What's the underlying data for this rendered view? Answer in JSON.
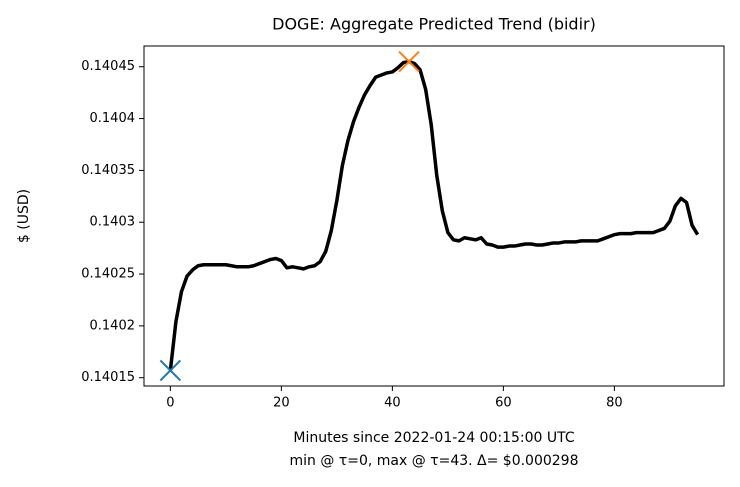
{
  "chart_data": {
    "type": "line",
    "title": "DOGE: Aggregate Predicted Trend (bidir)",
    "xlabel": "Minutes since 2022-01-24 00:15:00 UTC",
    "xlabel2": "min @ τ=0, max @ τ=43. Δ= $0.000298",
    "ylabel": "$ (USD)",
    "x": [
      0,
      1,
      2,
      3,
      4,
      5,
      6,
      7,
      8,
      9,
      10,
      11,
      12,
      13,
      14,
      15,
      16,
      17,
      18,
      19,
      20,
      21,
      22,
      23,
      24,
      25,
      26,
      27,
      28,
      29,
      30,
      31,
      32,
      33,
      34,
      35,
      36,
      37,
      38,
      39,
      40,
      41,
      42,
      43,
      44,
      45,
      46,
      47,
      48,
      49,
      50,
      51,
      52,
      53,
      54,
      55,
      56,
      57,
      58,
      59,
      60,
      61,
      62,
      63,
      64,
      65,
      66,
      67,
      68,
      69,
      70,
      71,
      72,
      73,
      74,
      75,
      76,
      77,
      78,
      79,
      80,
      81,
      82,
      83,
      84,
      85,
      86,
      87,
      88,
      89,
      90,
      91,
      92,
      93,
      94,
      95
    ],
    "series": [
      {
        "name": "trend",
        "color": "#000000",
        "values": [
          0.140157,
          0.140204,
          0.140233,
          0.140248,
          0.140254,
          0.140258,
          0.140259,
          0.140259,
          0.140259,
          0.140259,
          0.140259,
          0.140258,
          0.140257,
          0.140257,
          0.140257,
          0.140258,
          0.14026,
          0.140262,
          0.140264,
          0.140265,
          0.140263,
          0.140256,
          0.140257,
          0.140256,
          0.140255,
          0.140257,
          0.140258,
          0.140262,
          0.140272,
          0.140292,
          0.140321,
          0.140355,
          0.140379,
          0.140397,
          0.140411,
          0.140423,
          0.140432,
          0.14044,
          0.140442,
          0.140444,
          0.140445,
          0.140449,
          0.140454,
          0.140455,
          0.140453,
          0.140447,
          0.140428,
          0.140394,
          0.140345,
          0.140311,
          0.14029,
          0.140283,
          0.140282,
          0.140285,
          0.140284,
          0.140283,
          0.140285,
          0.140279,
          0.140278,
          0.140276,
          0.140276,
          0.140277,
          0.140277,
          0.140278,
          0.140279,
          0.140279,
          0.140278,
          0.140278,
          0.140279,
          0.14028,
          0.14028,
          0.140281,
          0.140281,
          0.140281,
          0.140282,
          0.140282,
          0.140282,
          0.140282,
          0.140284,
          0.140286,
          0.140288,
          0.140289,
          0.140289,
          0.140289,
          0.14029,
          0.14029,
          0.14029,
          0.14029,
          0.140292,
          0.140294,
          0.140301,
          0.140316,
          0.140323,
          0.140319,
          0.140297,
          0.140288
        ]
      }
    ],
    "markers": [
      {
        "x": 0,
        "y": 0.140157,
        "color": "#1f77b4"
      },
      {
        "x": 43,
        "y": 0.140455,
        "color": "#ff7f0e"
      }
    ],
    "xlim": [
      -4.75,
      99.75
    ],
    "xticks": [
      0,
      20,
      40,
      60,
      80
    ],
    "ylim": [
      0.140142,
      0.14047
    ],
    "yticks": [
      0.14015,
      0.1402,
      0.14025,
      0.1403,
      0.14035,
      0.1404,
      0.14045
    ]
  }
}
